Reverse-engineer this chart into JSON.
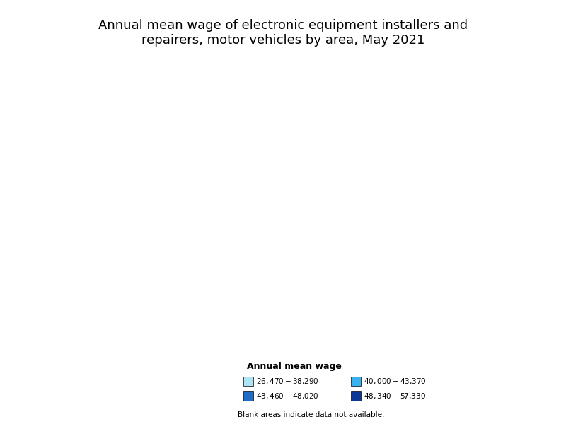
{
  "title": "Annual mean wage of electronic equipment installers and\nrepairers, motor vehicles by area, May 2021",
  "title_fontsize": 13,
  "legend_title": "Annual mean wage",
  "legend_labels": [
    "$26,470 - $38,290",
    "$40,000 - $43,370",
    "$43,460 - $48,020",
    "$48,340 - $57,330"
  ],
  "legend_colors": [
    "#aee4f5",
    "#39b3f0",
    "#1e6ec8",
    "#0d3899"
  ],
  "blank_note": "Blank areas indicate data not available.",
  "figsize": [
    8.0,
    6.0
  ],
  "background_color": "#ffffff"
}
